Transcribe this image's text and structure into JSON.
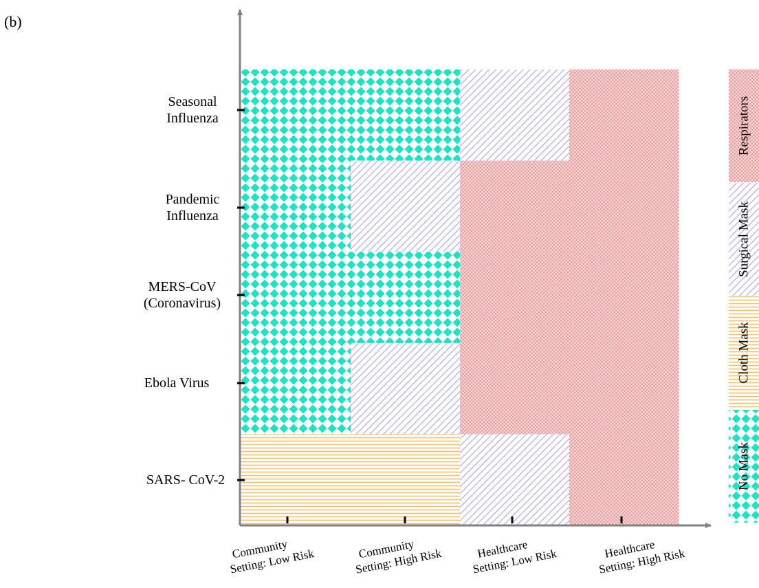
{
  "panel_label": "(b)",
  "chart_data": {
    "type": "heatmap",
    "title": "",
    "xlabel": "",
    "ylabel": "",
    "categories_x": [
      [
        "Community",
        "Setting: Low Risk"
      ],
      [
        "Community",
        "Setting: High Risk"
      ],
      [
        "Healthcare",
        "Setting: Low Risk"
      ],
      [
        "Healthcare",
        "Setting: High Risk"
      ]
    ],
    "categories_y": [
      [
        "Seasonal",
        "Influenza"
      ],
      [
        "Pandemic",
        "Influenza"
      ],
      [
        "MERS-CoV",
        "(Coronavirus)"
      ],
      [
        "Ebola Virus"
      ],
      [
        "SARS- CoV-2"
      ]
    ],
    "values": [
      [
        "No Mask",
        "No Mask",
        "Surgical Mask",
        "Respirators"
      ],
      [
        "No Mask",
        "Surgical Mask",
        "Respirators",
        "Respirators"
      ],
      [
        "No Mask",
        "No Mask",
        "Respirators",
        "Respirators"
      ],
      [
        "No Mask",
        "Surgical Mask",
        "Respirators",
        "Respirators"
      ],
      [
        "Cloth Mask",
        "Cloth Mask",
        "Surgical Mask",
        "Respirators"
      ]
    ],
    "legend": {
      "placement": "right",
      "order_top_to_bottom": [
        "Respirators",
        "Surgical Mask",
        "Cloth Mask",
        "No Mask"
      ]
    },
    "colors": {
      "No Mask": "#1ee3c0",
      "Cloth Mask": "#f0c268",
      "Surgical Mask": "#b4b0ef",
      "Respirators": "#f0a0a0"
    }
  }
}
